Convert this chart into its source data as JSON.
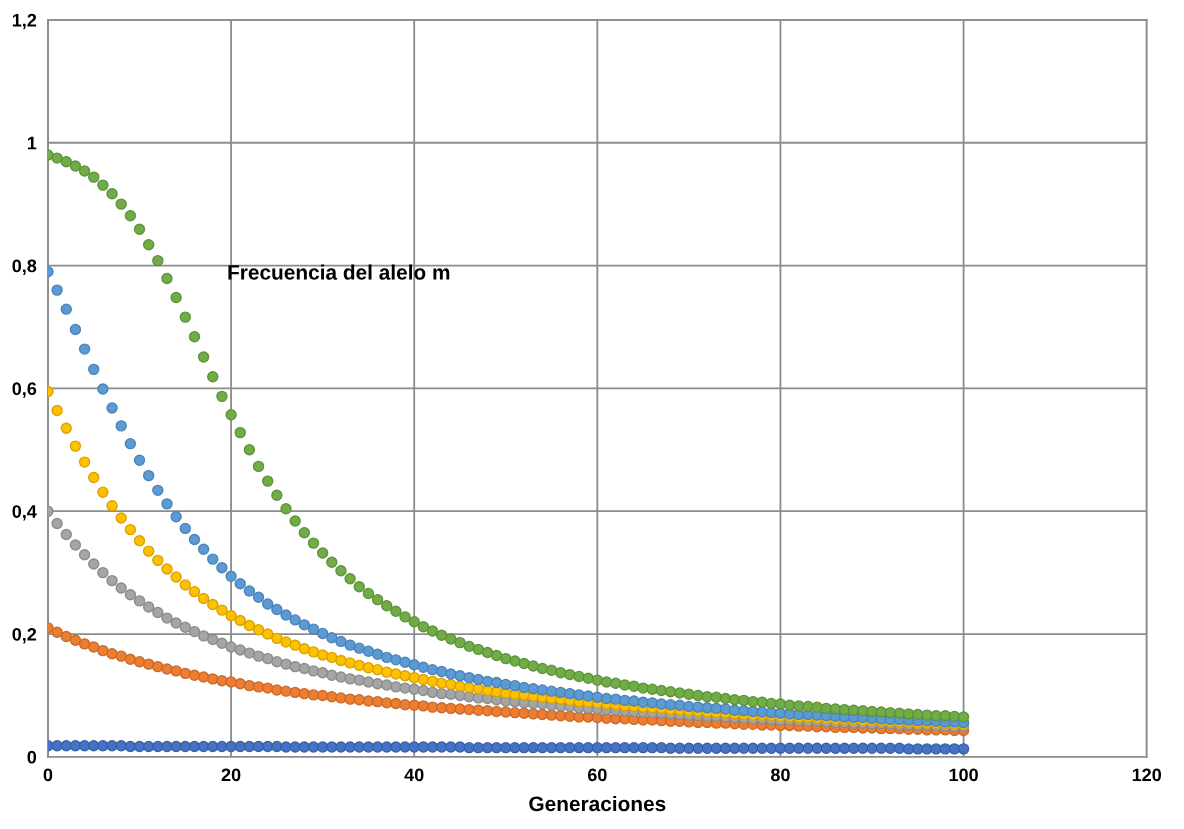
{
  "chart_data": {
    "type": "scatter",
    "title": "Frecuencia del alelo m",
    "xlabel": "Generaciones",
    "x": [
      0,
      1,
      2,
      3,
      4,
      5,
      6,
      7,
      8,
      9,
      10,
      11,
      12,
      13,
      14,
      15,
      16,
      17,
      18,
      19,
      20,
      21,
      22,
      23,
      24,
      25,
      26,
      27,
      28,
      29,
      30,
      31,
      32,
      33,
      34,
      35,
      36,
      37,
      38,
      39,
      40,
      41,
      42,
      43,
      44,
      45,
      46,
      47,
      48,
      49,
      50,
      51,
      52,
      53,
      54,
      55,
      56,
      57,
      58,
      59,
      60,
      61,
      62,
      63,
      64,
      65,
      66,
      67,
      68,
      69,
      70,
      71,
      72,
      73,
      74,
      75,
      76,
      77,
      78,
      79,
      80,
      81,
      82,
      83,
      84,
      85,
      86,
      87,
      88,
      89,
      90,
      91,
      92,
      93,
      94,
      95,
      96,
      97,
      98,
      99,
      100
    ],
    "series": [
      {
        "color": "#5b9bd5",
        "values": [
          0.79,
          0.76,
          0.729,
          0.696,
          0.664,
          0.631,
          0.599,
          0.568,
          0.539,
          0.51,
          0.483,
          0.458,
          0.434,
          0.412,
          0.391,
          0.372,
          0.354,
          0.338,
          0.322,
          0.308,
          0.294,
          0.282,
          0.27,
          0.26,
          0.249,
          0.24,
          0.231,
          0.223,
          0.215,
          0.208,
          0.201,
          0.194,
          0.188,
          0.182,
          0.177,
          0.172,
          0.167,
          0.162,
          0.158,
          0.154,
          0.15,
          0.146,
          0.142,
          0.139,
          0.135,
          0.132,
          0.129,
          0.126,
          0.123,
          0.121,
          0.118,
          0.116,
          0.113,
          0.111,
          0.109,
          0.107,
          0.105,
          0.103,
          0.101,
          0.099,
          0.097,
          0.095,
          0.094,
          0.092,
          0.091,
          0.089,
          0.088,
          0.086,
          0.085,
          0.084,
          0.082,
          0.081,
          0.08,
          0.079,
          0.078,
          0.076,
          0.075,
          0.074,
          0.073,
          0.072,
          0.071,
          0.07,
          0.069,
          0.069,
          0.068,
          0.067,
          0.066,
          0.065,
          0.064,
          0.064,
          0.063,
          0.062,
          0.061,
          0.061,
          0.06,
          0.059,
          0.059,
          0.058,
          0.057,
          0.057,
          0.056
        ]
      },
      {
        "color": "#ed7d31",
        "values": [
          0.21,
          0.203,
          0.196,
          0.19,
          0.184,
          0.179,
          0.173,
          0.168,
          0.164,
          0.159,
          0.155,
          0.151,
          0.147,
          0.143,
          0.14,
          0.136,
          0.133,
          0.13,
          0.127,
          0.124,
          0.122,
          0.119,
          0.116,
          0.114,
          0.112,
          0.109,
          0.107,
          0.105,
          0.103,
          0.101,
          0.1,
          0.098,
          0.096,
          0.094,
          0.093,
          0.091,
          0.09,
          0.088,
          0.087,
          0.085,
          0.084,
          0.083,
          0.081,
          0.08,
          0.079,
          0.078,
          0.077,
          0.076,
          0.075,
          0.074,
          0.073,
          0.072,
          0.071,
          0.07,
          0.069,
          0.068,
          0.067,
          0.066,
          0.065,
          0.065,
          0.064,
          0.063,
          0.062,
          0.062,
          0.061,
          0.06,
          0.06,
          0.059,
          0.058,
          0.058,
          0.057,
          0.056,
          0.056,
          0.055,
          0.055,
          0.054,
          0.053,
          0.053,
          0.052,
          0.052,
          0.051,
          0.051,
          0.05,
          0.05,
          0.049,
          0.049,
          0.048,
          0.048,
          0.048,
          0.047,
          0.047,
          0.046,
          0.046,
          0.046,
          0.045,
          0.045,
          0.044,
          0.044,
          0.044,
          0.043,
          0.043
        ]
      },
      {
        "color": "#a5a5a5",
        "values": [
          0.4,
          0.38,
          0.362,
          0.345,
          0.329,
          0.314,
          0.3,
          0.287,
          0.275,
          0.264,
          0.254,
          0.244,
          0.235,
          0.226,
          0.218,
          0.211,
          0.204,
          0.197,
          0.191,
          0.185,
          0.179,
          0.174,
          0.169,
          0.164,
          0.16,
          0.155,
          0.151,
          0.147,
          0.144,
          0.14,
          0.137,
          0.133,
          0.13,
          0.127,
          0.125,
          0.122,
          0.119,
          0.117,
          0.114,
          0.112,
          0.11,
          0.108,
          0.105,
          0.103,
          0.102,
          0.1,
          0.098,
          0.096,
          0.095,
          0.093,
          0.091,
          0.09,
          0.088,
          0.087,
          0.086,
          0.084,
          0.083,
          0.082,
          0.08,
          0.079,
          0.078,
          0.077,
          0.076,
          0.075,
          0.074,
          0.073,
          0.072,
          0.071,
          0.07,
          0.069,
          0.068,
          0.067,
          0.066,
          0.066,
          0.065,
          0.064,
          0.063,
          0.062,
          0.062,
          0.061,
          0.06,
          0.06,
          0.059,
          0.058,
          0.058,
          0.057,
          0.056,
          0.056,
          0.055,
          0.055,
          0.054,
          0.054,
          0.053,
          0.052,
          0.052,
          0.051,
          0.051,
          0.05,
          0.05,
          0.049,
          0.049
        ]
      },
      {
        "color": "#ffc000",
        "values": [
          0.595,
          0.564,
          0.535,
          0.506,
          0.48,
          0.455,
          0.431,
          0.409,
          0.389,
          0.37,
          0.352,
          0.335,
          0.32,
          0.306,
          0.293,
          0.28,
          0.269,
          0.258,
          0.248,
          0.239,
          0.23,
          0.222,
          0.214,
          0.207,
          0.2,
          0.193,
          0.187,
          0.182,
          0.176,
          0.171,
          0.166,
          0.162,
          0.157,
          0.153,
          0.149,
          0.145,
          0.142,
          0.138,
          0.135,
          0.132,
          0.129,
          0.126,
          0.123,
          0.12,
          0.118,
          0.115,
          0.113,
          0.111,
          0.108,
          0.106,
          0.104,
          0.102,
          0.101,
          0.099,
          0.097,
          0.095,
          0.094,
          0.092,
          0.09,
          0.089,
          0.088,
          0.086,
          0.085,
          0.083,
          0.082,
          0.081,
          0.08,
          0.079,
          0.077,
          0.076,
          0.075,
          0.074,
          0.073,
          0.072,
          0.071,
          0.07,
          0.069,
          0.068,
          0.068,
          0.067,
          0.066,
          0.065,
          0.064,
          0.064,
          0.063,
          0.062,
          0.061,
          0.061,
          0.06,
          0.059,
          0.059,
          0.058,
          0.057,
          0.057,
          0.056,
          0.055,
          0.055,
          0.054,
          0.054,
          0.053,
          0.053
        ]
      },
      {
        "color": "#4472c4",
        "values": [
          0.018,
          0.018,
          0.018,
          0.018,
          0.018,
          0.018,
          0.018,
          0.018,
          0.018,
          0.017,
          0.017,
          0.017,
          0.017,
          0.017,
          0.017,
          0.017,
          0.017,
          0.017,
          0.017,
          0.017,
          0.017,
          0.017,
          0.017,
          0.017,
          0.017,
          0.017,
          0.016,
          0.016,
          0.016,
          0.016,
          0.016,
          0.016,
          0.016,
          0.016,
          0.016,
          0.016,
          0.016,
          0.016,
          0.016,
          0.016,
          0.016,
          0.016,
          0.016,
          0.016,
          0.016,
          0.016,
          0.015,
          0.015,
          0.015,
          0.015,
          0.015,
          0.015,
          0.015,
          0.015,
          0.015,
          0.015,
          0.015,
          0.015,
          0.015,
          0.015,
          0.015,
          0.015,
          0.015,
          0.015,
          0.015,
          0.015,
          0.015,
          0.015,
          0.014,
          0.014,
          0.014,
          0.014,
          0.014,
          0.014,
          0.014,
          0.014,
          0.014,
          0.014,
          0.014,
          0.014,
          0.014,
          0.014,
          0.014,
          0.014,
          0.014,
          0.014,
          0.014,
          0.014,
          0.014,
          0.014,
          0.014,
          0.014,
          0.014,
          0.014,
          0.013,
          0.013,
          0.013,
          0.013,
          0.013,
          0.013,
          0.013
        ]
      },
      {
        "color": "#70ad47",
        "values": [
          0.98,
          0.975,
          0.969,
          0.962,
          0.954,
          0.944,
          0.931,
          0.917,
          0.9,
          0.881,
          0.859,
          0.834,
          0.808,
          0.779,
          0.748,
          0.716,
          0.684,
          0.651,
          0.619,
          0.587,
          0.557,
          0.528,
          0.5,
          0.473,
          0.449,
          0.426,
          0.404,
          0.384,
          0.365,
          0.348,
          0.332,
          0.317,
          0.303,
          0.29,
          0.277,
          0.266,
          0.256,
          0.246,
          0.237,
          0.228,
          0.22,
          0.212,
          0.205,
          0.198,
          0.192,
          0.186,
          0.18,
          0.175,
          0.17,
          0.165,
          0.16,
          0.156,
          0.152,
          0.148,
          0.144,
          0.141,
          0.137,
          0.134,
          0.131,
          0.128,
          0.125,
          0.122,
          0.12,
          0.117,
          0.115,
          0.112,
          0.11,
          0.108,
          0.106,
          0.104,
          0.102,
          0.1,
          0.098,
          0.097,
          0.095,
          0.093,
          0.092,
          0.09,
          0.089,
          0.087,
          0.086,
          0.084,
          0.083,
          0.082,
          0.081,
          0.079,
          0.078,
          0.077,
          0.076,
          0.075,
          0.074,
          0.073,
          0.072,
          0.071,
          0.07,
          0.069,
          0.068,
          0.067,
          0.067,
          0.066,
          0.065
        ]
      }
    ],
    "xlim": [
      0,
      120
    ],
    "xticks": [
      0,
      20,
      40,
      60,
      80,
      100,
      120
    ],
    "ylim": [
      0,
      1.2
    ],
    "yticks": [
      0,
      {
        "value": 0.2,
        "label": "0,2"
      },
      {
        "value": 0.4,
        "label": "0,4"
      },
      {
        "value": 0.6,
        "label": "0,6"
      },
      {
        "value": 0.8,
        "label": "0,8"
      },
      1,
      {
        "value": 1.2,
        "label": "1,2"
      }
    ],
    "grid": true,
    "marker": "circle"
  }
}
